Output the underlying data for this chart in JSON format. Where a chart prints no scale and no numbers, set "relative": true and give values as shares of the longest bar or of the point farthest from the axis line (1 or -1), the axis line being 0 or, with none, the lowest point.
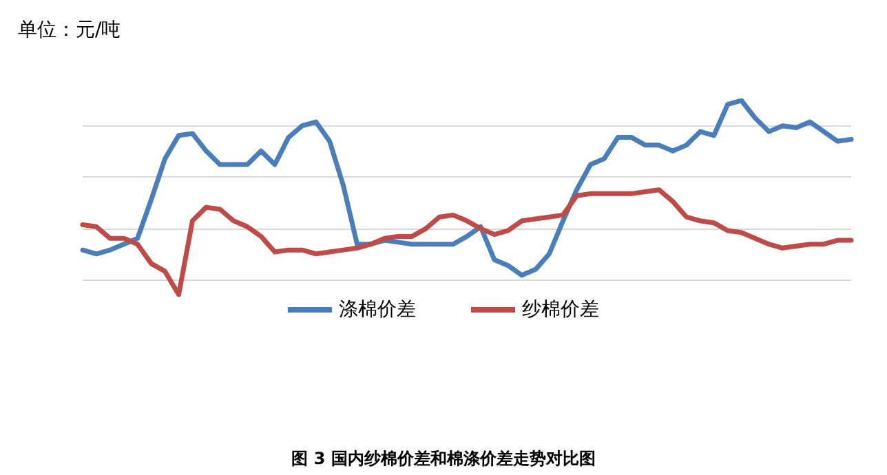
{
  "chart_data": {
    "type": "line",
    "title": "单位：元/吨",
    "annotations": [
      "图 3 国内纱棉价差和棉涤价差走势对比图"
    ],
    "relative": true,
    "grid": "y",
    "legend": "bottom",
    "marker": "none",
    "line_style": "solid",
    "categories": [
      null,
      null,
      null,
      null,
      null,
      null,
      null,
      null,
      null,
      null,
      null,
      null,
      null,
      null,
      null,
      null,
      null,
      null,
      null,
      null,
      null,
      null,
      null,
      null,
      null,
      null,
      null,
      null,
      null,
      null,
      null,
      null,
      null,
      null,
      null,
      null,
      null,
      null,
      null,
      null,
      null,
      null,
      null,
      null,
      null,
      null,
      null,
      null,
      null,
      null,
      null,
      null,
      null,
      null,
      null,
      null,
      null
    ],
    "series": [
      {
        "name": "涤棉价差",
        "color": "#4a7ebb",
        "values": [
          0.23,
          0.21,
          0.23,
          0.26,
          0.29,
          0.49,
          0.7,
          0.82,
          0.83,
          0.74,
          0.67,
          0.67,
          0.67,
          0.74,
          0.67,
          0.81,
          0.87,
          0.89,
          0.79,
          0.56,
          0.26,
          0.26,
          0.28,
          0.27,
          0.26,
          0.26,
          0.26,
          0.26,
          0.3,
          0.35,
          0.18,
          0.15,
          0.1,
          0.13,
          0.21,
          0.38,
          0.54,
          0.67,
          0.7,
          0.81,
          0.81,
          0.77,
          0.77,
          0.74,
          0.77,
          0.84,
          0.82,
          0.98,
          1.0,
          0.91,
          0.84,
          0.87,
          0.86,
          0.89,
          0.84,
          0.79,
          0.8
        ]
      },
      {
        "name": "纱棉价差",
        "color": "#be4b48",
        "values": [
          0.36,
          0.35,
          0.29,
          0.29,
          0.26,
          0.16,
          0.12,
          0.0,
          0.38,
          0.45,
          0.44,
          0.38,
          0.35,
          0.3,
          0.22,
          0.23,
          0.23,
          0.21,
          0.22,
          0.23,
          0.24,
          0.26,
          0.29,
          0.3,
          0.3,
          0.34,
          0.4,
          0.41,
          0.38,
          0.34,
          0.31,
          0.33,
          0.38,
          0.39,
          0.4,
          0.41,
          0.51,
          0.52,
          0.52,
          0.52,
          0.52,
          0.53,
          0.54,
          0.48,
          0.4,
          0.38,
          0.37,
          0.33,
          0.32,
          0.29,
          0.26,
          0.24,
          0.25,
          0.26,
          0.26,
          0.28,
          0.28
        ]
      }
    ]
  }
}
